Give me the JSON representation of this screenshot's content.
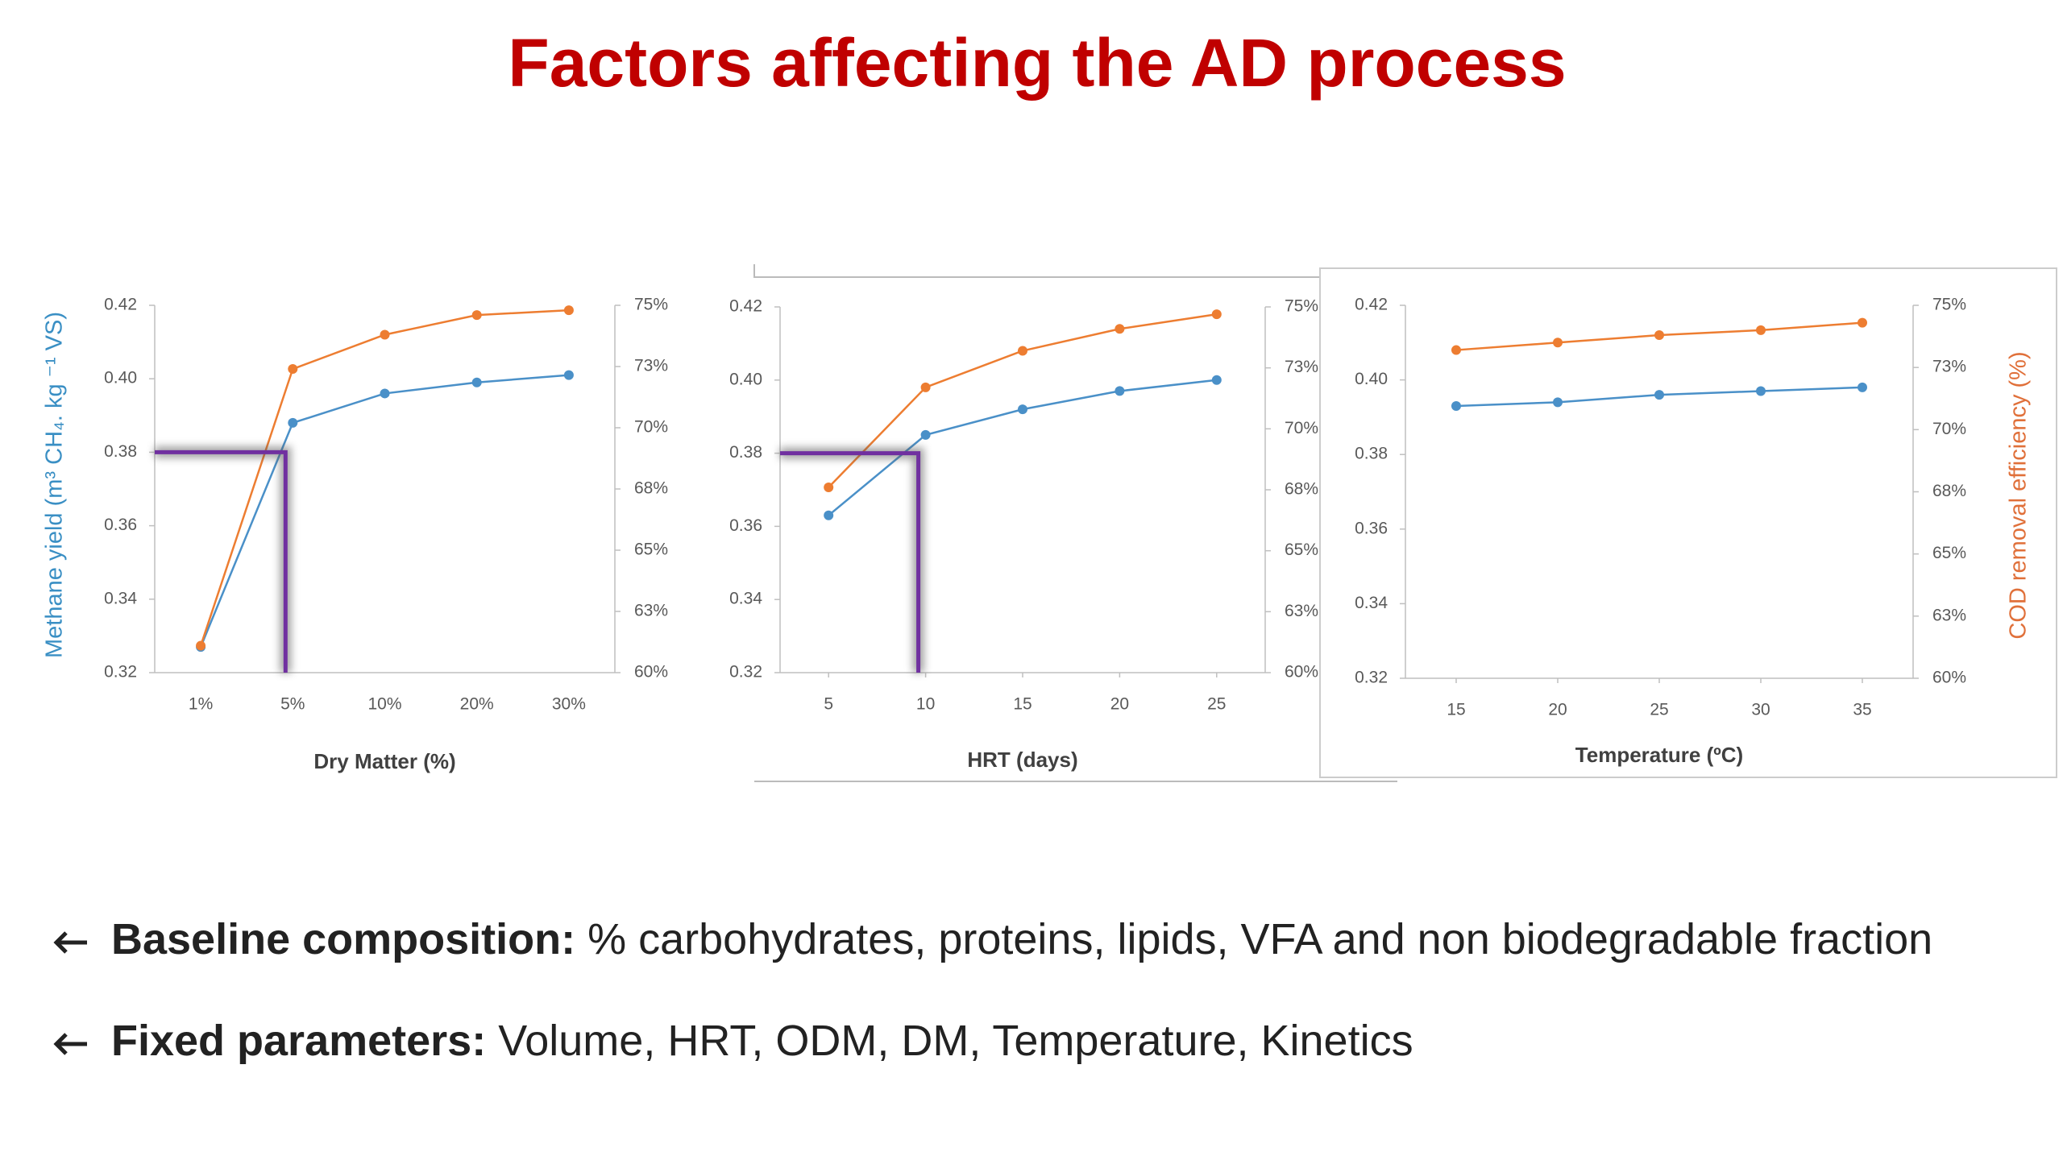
{
  "title": "Factors affecting the AD process",
  "chart_data": [
    {
      "type": "line",
      "categories": [
        "1%",
        "5%",
        "10%",
        "20%",
        "30%"
      ],
      "xlabel": "Dry Matter (%)",
      "ylabel": "Methane yield (m³ CH₄. kg ⁻¹ VS)",
      "ylim": [
        0.32,
        0.42
      ],
      "yticks": [
        0.32,
        0.34,
        0.36,
        0.38,
        {
          "value": 0.4,
          "label": "0.40"
        },
        0.42
      ],
      "y2lim": [
        60,
        75
      ],
      "y2ticks": [
        {
          "value": 60,
          "label": "60%"
        },
        {
          "value": 62.5,
          "label": "63%"
        },
        {
          "value": 65,
          "label": "65%"
        },
        {
          "value": 67.5,
          "label": "68%"
        },
        {
          "value": 70,
          "label": "70%"
        },
        {
          "value": 72.5,
          "label": "73%"
        },
        {
          "value": 75,
          "label": "75%"
        }
      ],
      "series": [
        {
          "color": "#4a90c8",
          "values": [
            0.327,
            0.388,
            0.396,
            0.399,
            0.401
          ]
        },
        {
          "color": "#ed7d31",
          "axis": "y2",
          "values": [
            61.1,
            72.4,
            73.8,
            74.6,
            74.8
          ]
        }
      ]
    },
    {
      "type": "line",
      "x": [
        5,
        10,
        15,
        20,
        25
      ],
      "xlim": [
        2.5,
        27.5
      ],
      "xticks": [
        5,
        10,
        15,
        20,
        25
      ],
      "xlabel": "HRT (days)",
      "ylim": [
        0.32,
        0.42
      ],
      "yticks": [
        0.32,
        0.34,
        0.36,
        0.38,
        {
          "value": 0.4,
          "label": "0.40"
        },
        0.42
      ],
      "y2lim": [
        60,
        75
      ],
      "y2ticks": [
        {
          "value": 60,
          "label": "60%"
        },
        {
          "value": 62.5,
          "label": "63%"
        },
        {
          "value": 65,
          "label": "65%"
        },
        {
          "value": 67.5,
          "label": "68%"
        },
        {
          "value": 70,
          "label": "70%"
        },
        {
          "value": 72.5,
          "label": "73%"
        },
        {
          "value": 75,
          "label": "75%"
        }
      ],
      "series": [
        {
          "color": "#4a90c8",
          "values": [
            0.363,
            0.385,
            0.392,
            0.397,
            0.4
          ]
        },
        {
          "color": "#ed7d31",
          "axis": "y2",
          "values": [
            67.6,
            71.7,
            73.2,
            74.1,
            74.7
          ]
        }
      ]
    },
    {
      "type": "line",
      "x": [
        15,
        20,
        25,
        30,
        35
      ],
      "xlim": [
        12.5,
        37.5
      ],
      "xticks": [
        15,
        20,
        25,
        30,
        35
      ],
      "xlabel": "Temperature (ºC)",
      "y2label": "COD removal efficiency (%)",
      "ylim": [
        0.32,
        0.42
      ],
      "yticks": [
        0.32,
        0.34,
        0.36,
        0.38,
        {
          "value": 0.4,
          "label": "0.40"
        },
        0.42
      ],
      "y2lim": [
        60,
        75
      ],
      "y2ticks": [
        {
          "value": 60,
          "label": "60%"
        },
        {
          "value": 62.5,
          "label": "63%"
        },
        {
          "value": 65,
          "label": "65%"
        },
        {
          "value": 67.5,
          "label": "68%"
        },
        {
          "value": 70,
          "label": "70%"
        },
        {
          "value": 72.5,
          "label": "73%"
        },
        {
          "value": 75,
          "label": "75%"
        }
      ],
      "series": [
        {
          "color": "#4a90c8",
          "values": [
            0.393,
            0.394,
            0.396,
            0.397,
            0.398
          ]
        },
        {
          "color": "#ed7d31",
          "axis": "y2",
          "values": [
            73.2,
            73.5,
            73.8,
            74.0,
            74.3
          ]
        }
      ]
    }
  ],
  "bullets": [
    {
      "label": "Baseline composition:",
      "text": " % carbohydrates, proteins, lipids, VFA and non biodegradable fraction"
    },
    {
      "label": "Fixed parameters:",
      "text": " Volume, HRT, ODM, DM, Temperature, Kinetics"
    }
  ]
}
